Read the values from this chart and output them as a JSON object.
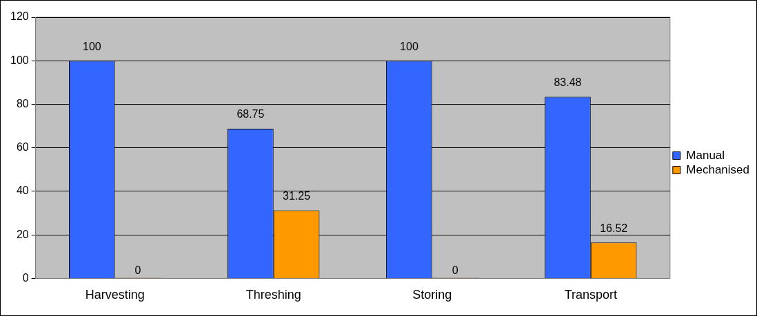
{
  "chart_data": {
    "type": "bar",
    "categories": [
      "Harvesting",
      "Threshing",
      "Storing",
      "Transport"
    ],
    "series": [
      {
        "name": "Manual",
        "color": "#3366ff",
        "values": [
          100,
          68.75,
          100,
          83.48
        ]
      },
      {
        "name": "Mechanised",
        "color": "#ff9900",
        "values": [
          0,
          31.25,
          0,
          16.52
        ]
      }
    ],
    "ylim": [
      0,
      120
    ],
    "yticks": [
      0,
      20,
      40,
      60,
      80,
      100,
      120
    ],
    "grid": "y",
    "legend": "right",
    "data_labels": true
  }
}
